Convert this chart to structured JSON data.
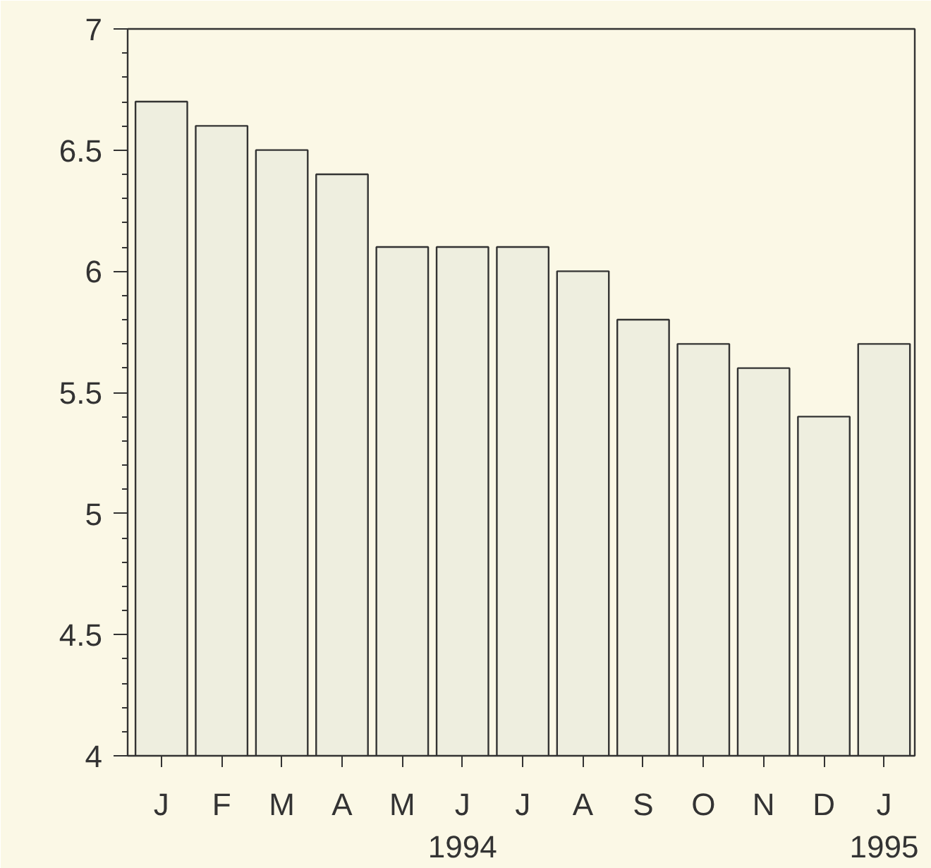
{
  "chart_data": {
    "type": "bar",
    "categories": [
      "J",
      "F",
      "M",
      "A",
      "M",
      "J\n1994",
      "J",
      "A",
      "S",
      "O",
      "N",
      "D",
      "J\n1995"
    ],
    "values": [
      6.7,
      6.6,
      6.5,
      6.4,
      6.1,
      6.1,
      6.1,
      6.0,
      5.8,
      5.7,
      5.6,
      5.4,
      5.7
    ],
    "color": "#eeeedf",
    "ylim": [
      4,
      7
    ],
    "yticks": [
      4,
      {
        "value": 4.1,
        "label": null
      },
      {
        "value": 4.2,
        "label": null
      },
      {
        "value": 4.3,
        "label": null
      },
      {
        "value": 4.4,
        "label": null
      },
      4.5,
      {
        "value": 4.6,
        "label": null
      },
      {
        "value": 4.7,
        "label": null
      },
      {
        "value": 4.8,
        "label": null
      },
      {
        "value": 4.9,
        "label": null
      },
      5,
      {
        "value": 5.1,
        "label": null
      },
      {
        "value": 5.2,
        "label": null
      },
      {
        "value": 5.3,
        "label": null
      },
      {
        "value": 5.4,
        "label": null
      },
      5.5,
      {
        "value": 5.6,
        "label": null
      },
      {
        "value": 5.7,
        "label": null
      },
      {
        "value": 5.8,
        "label": null
      },
      {
        "value": 5.9,
        "label": null
      },
      6,
      {
        "value": 6.1,
        "label": null
      },
      {
        "value": 6.2,
        "label": null
      },
      {
        "value": 6.3,
        "label": null
      },
      {
        "value": 6.4,
        "label": null
      },
      6.5,
      {
        "value": 6.6,
        "label": null
      },
      {
        "value": 6.7,
        "label": null
      },
      {
        "value": 6.8,
        "label": null
      },
      {
        "value": 6.9,
        "label": null
      },
      7
    ],
    "grid": false
  }
}
